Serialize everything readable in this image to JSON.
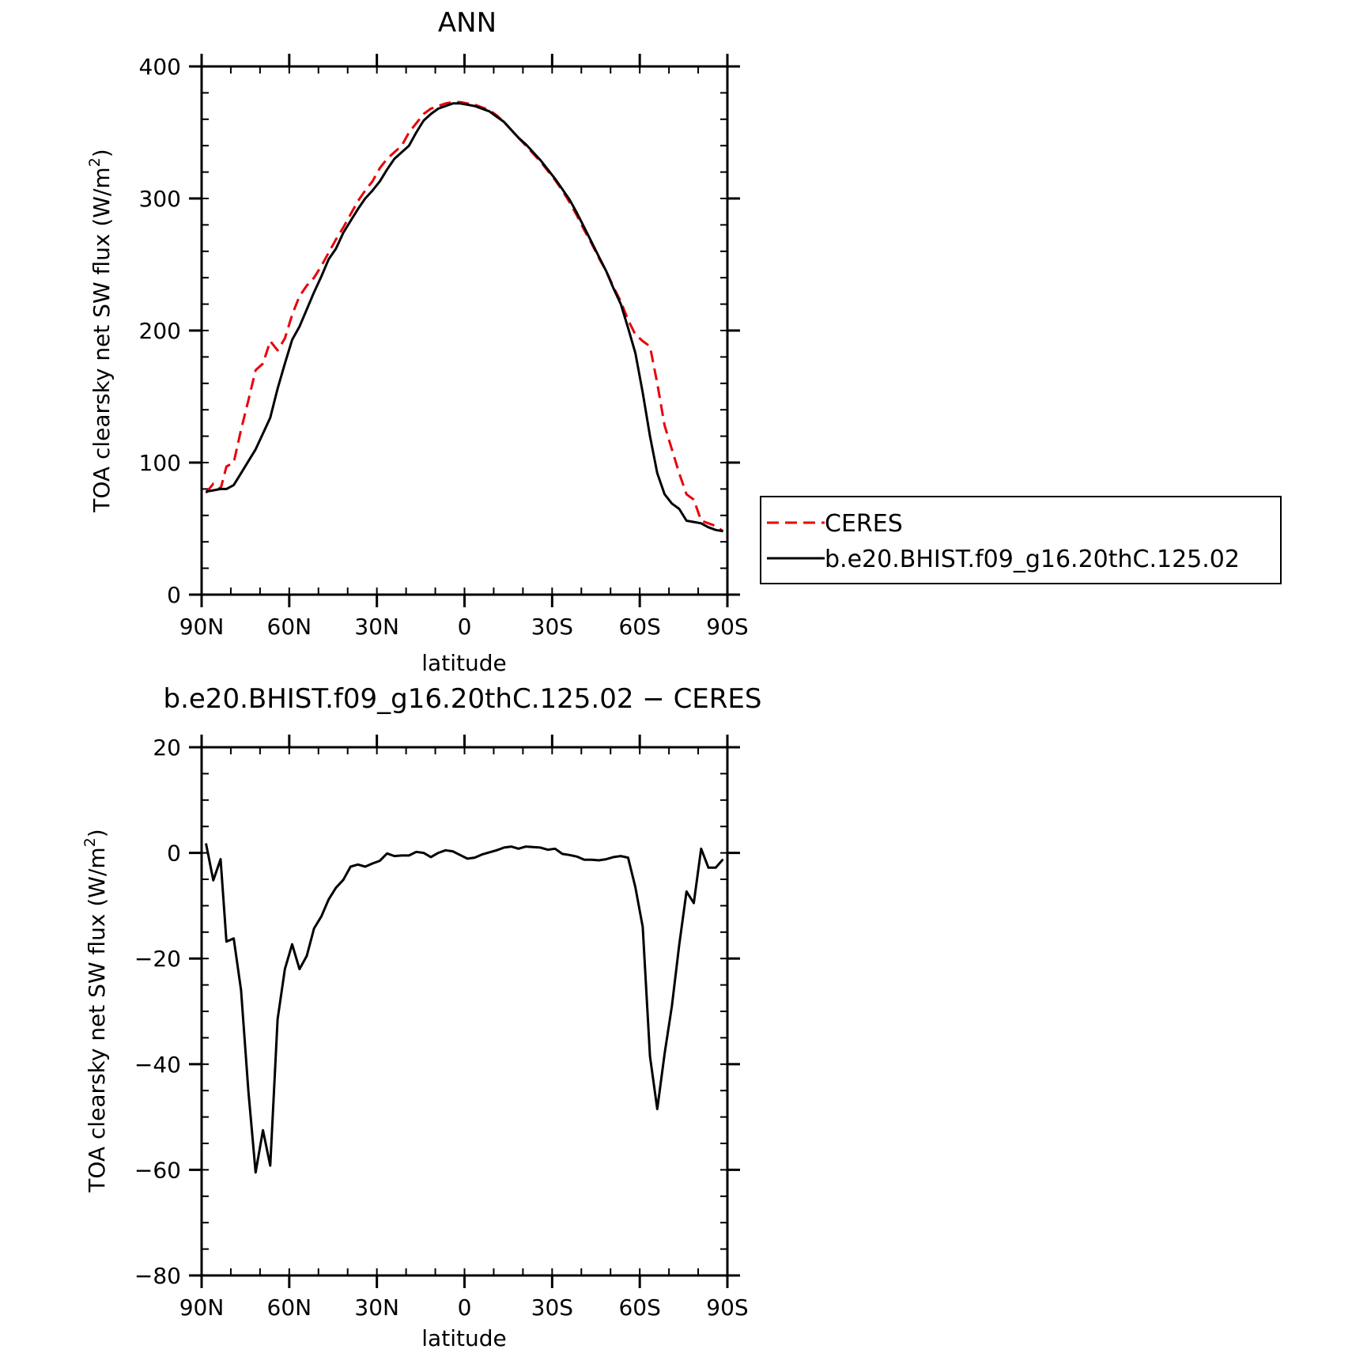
{
  "chart_data": [
    {
      "type": "line",
      "title": "ANN",
      "xlabel": "latitude",
      "ylabel_main": "TOA clearsky net SW flux (W/m",
      "ylabel_sup": "2",
      "ylabel_close": ")",
      "xlim": [
        90,
        -90
      ],
      "ylim": [
        0,
        400
      ],
      "xticks": [
        90,
        60,
        30,
        0,
        -30,
        -60,
        -90
      ],
      "xtick_labels": [
        "90N",
        "60N",
        "30N",
        "0",
        "30S",
        "60S",
        "90S"
      ],
      "yticks": [
        0,
        100,
        200,
        300,
        400
      ],
      "ytick_labels": [
        "0",
        "100",
        "200",
        "300",
        "400"
      ],
      "legend": "right",
      "series": [
        {
          "name": "CERES",
          "color": "#e8000b",
          "dash": "dashed",
          "x": [
            88.5,
            86,
            83.5,
            81.5,
            79,
            76.5,
            74,
            71.5,
            69,
            66.5,
            64,
            61.5,
            59,
            56.5,
            54,
            51.5,
            49,
            46.5,
            44,
            41.5,
            39,
            36.5,
            34,
            31.5,
            29,
            26.5,
            24,
            21.5,
            19,
            16.5,
            14,
            11.5,
            9,
            6.5,
            4,
            1.5,
            -1,
            -3.5,
            -6,
            -8.5,
            -11,
            -13.5,
            -16,
            -18.5,
            -21,
            -23.5,
            -26,
            -28.5,
            -31,
            -33.5,
            -36,
            -38.5,
            -41,
            -43.5,
            -46,
            -48.5,
            -51,
            -53.5,
            -56,
            -58.5,
            -61,
            -63.5,
            -66,
            -68.5,
            -71,
            -73.5,
            -76,
            -78.5,
            -81,
            -83.5,
            -86,
            -88.5
          ],
          "values": [
            77,
            84,
            80,
            97,
            100,
            125,
            147,
            170,
            175,
            192,
            185,
            194,
            212,
            226,
            234,
            240,
            249,
            259,
            269,
            278,
            288,
            298,
            306,
            313,
            323,
            330,
            335,
            340,
            350,
            357,
            364,
            368,
            370,
            372,
            373,
            373,
            372,
            371,
            369,
            367,
            363,
            358,
            352,
            346,
            340,
            334,
            328,
            321,
            314,
            306,
            297,
            287,
            276,
            266,
            255,
            245,
            233,
            222,
            208,
            197,
            192,
            188,
            160,
            128,
            110,
            92,
            76,
            72,
            56,
            54,
            52,
            48
          ]
        },
        {
          "name": "b.e20.BHIST.f09_g16.20thC.125.02",
          "color": "#000000",
          "dash": "solid",
          "x": [
            88.5,
            86,
            83.5,
            81.5,
            79,
            76.5,
            74,
            71.5,
            69,
            66.5,
            64,
            61.5,
            59,
            56.5,
            54,
            51.5,
            49,
            46.5,
            44,
            41.5,
            39,
            36.5,
            34,
            31.5,
            29,
            26.5,
            24,
            21.5,
            19,
            16.5,
            14,
            11.5,
            9,
            6.5,
            4,
            1.5,
            -1,
            -3.5,
            -6,
            -8.5,
            -11,
            -13.5,
            -16,
            -18.5,
            -21,
            -23.5,
            -26,
            -28.5,
            -31,
            -33.5,
            -36,
            -38.5,
            -41,
            -43.5,
            -46,
            -48.5,
            -51,
            -53.5,
            -56,
            -58.5,
            -61,
            -63.5,
            -66,
            -68.5,
            -71,
            -73.5,
            -76,
            -78.5,
            -81,
            -83.5,
            -86,
            -88.5
          ],
          "values": [
            78,
            79,
            80,
            80,
            83,
            92,
            101,
            110,
            122,
            134,
            156,
            175,
            193,
            203,
            216,
            229,
            241,
            254,
            262,
            274,
            283,
            292,
            300,
            306,
            313,
            322,
            330,
            335,
            340,
            350,
            359,
            364,
            368,
            370,
            372,
            372,
            371,
            370,
            368,
            366,
            362,
            358,
            352,
            346,
            341,
            335,
            329,
            322,
            315,
            307,
            299,
            289,
            278,
            267,
            256,
            245,
            232,
            220,
            202,
            183,
            153,
            120,
            92,
            76,
            69,
            65,
            56,
            55,
            54,
            51,
            49,
            48
          ]
        }
      ]
    },
    {
      "type": "line",
      "title": "b.e20.BHIST.f09_g16.20thC.125.02 − CERES",
      "xlabel": "latitude",
      "ylabel_main": "TOA clearsky net SW flux (W/m",
      "ylabel_sup": "2",
      "ylabel_close": ")",
      "xlim": [
        90,
        -90
      ],
      "ylim": [
        -80,
        20
      ],
      "xticks": [
        90,
        60,
        30,
        0,
        -30,
        -60,
        -90
      ],
      "xtick_labels": [
        "90N",
        "60N",
        "30N",
        "0",
        "30S",
        "60S",
        "90S"
      ],
      "yticks": [
        -80,
        -60,
        -40,
        -20,
        0,
        20
      ],
      "ytick_labels": [
        "−80",
        "−60",
        "−40",
        "−20",
        "0",
        "20"
      ],
      "series": [
        {
          "color": "#000000",
          "dash": "solid",
          "x": [
            88.5,
            86,
            83.5,
            81.5,
            79,
            76.5,
            74,
            71.5,
            69,
            66.5,
            64,
            61.5,
            59,
            56.5,
            54,
            51.5,
            49,
            46.5,
            44,
            41.5,
            39,
            36.5,
            34,
            31.5,
            29,
            26.5,
            24,
            21.5,
            19,
            16.5,
            14,
            11.5,
            9,
            6.5,
            4,
            1.5,
            -1,
            -3.5,
            -6,
            -8.5,
            -11,
            -13.5,
            -16,
            -18.5,
            -21,
            -23.5,
            -26,
            -28.5,
            -31,
            -33.5,
            -36,
            -38.5,
            -41,
            -43.5,
            -46,
            -48.5,
            -51,
            -53.5,
            -56,
            -58.5,
            -61,
            -63.5,
            -66,
            -68.5,
            -71,
            -73.5,
            -76,
            -78.5,
            -81,
            -83.5,
            -86,
            -88.5
          ],
          "values": [
            1.8,
            -5.2,
            -1.2,
            -16.8,
            -16.2,
            -26,
            -45,
            -60.5,
            -52.5,
            -59.2,
            -31.5,
            -22,
            -17.3,
            -22,
            -19.5,
            -14.3,
            -12,
            -8.8,
            -6.6,
            -5.1,
            -2.6,
            -2.2,
            -2.6,
            -2,
            -1.5,
            -0.1,
            -0.6,
            -0.5,
            -0.5,
            0.2,
            0,
            -0.8,
            0,
            0.5,
            0.3,
            -0.4,
            -1.1,
            -0.9,
            -0.3,
            0.1,
            0.5,
            1,
            1.2,
            0.8,
            1.2,
            1.1,
            1,
            0.6,
            0.8,
            -0.2,
            -0.4,
            -0.7,
            -1.3,
            -1.3,
            -1.4,
            -1.2,
            -0.8,
            -0.6,
            -0.9,
            -6.5,
            -14,
            -38.5,
            -48.5,
            -38,
            -29,
            -17.5,
            -7.3,
            -9.5,
            0.8,
            -2.8,
            -2.8,
            -1.2
          ]
        }
      ]
    }
  ]
}
